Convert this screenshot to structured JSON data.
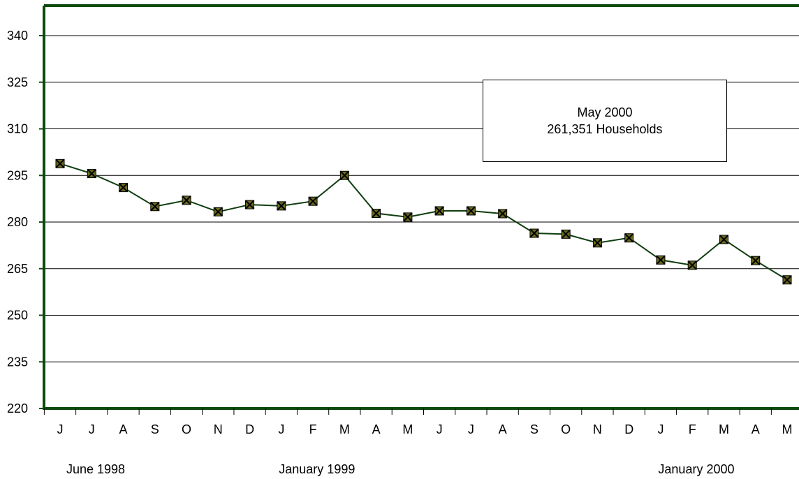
{
  "chart_data": {
    "type": "line",
    "title": "",
    "xlabel": "",
    "ylabel": "",
    "ylim": [
      220,
      340
    ],
    "yticks": [
      220,
      235,
      250,
      265,
      280,
      295,
      310,
      325,
      340
    ],
    "grid": true,
    "categories": [
      "J",
      "J",
      "A",
      "S",
      "O",
      "N",
      "D",
      "J",
      "F",
      "M",
      "A",
      "M",
      "J",
      "J",
      "A",
      "S",
      "O",
      "N",
      "D",
      "J",
      "F",
      "M",
      "A",
      "M"
    ],
    "period_labels": [
      {
        "index": 0,
        "text": "June 1998"
      },
      {
        "index": 7,
        "text": "January 1999"
      },
      {
        "index": 19,
        "text": "January 2000"
      }
    ],
    "series": [
      {
        "values": [
          298.8,
          295.6,
          291.1,
          285.0,
          287.0,
          283.3,
          285.6,
          285.2,
          286.7,
          295.0,
          282.8,
          281.6,
          283.6,
          283.6,
          282.7,
          276.4,
          276.1,
          273.3,
          274.9,
          267.8,
          266.1,
          274.4,
          267.6,
          261.4
        ]
      }
    ],
    "colors": {
      "line": "#0f3d0f",
      "marker_fill": "#6b6b1f",
      "axis": "#0f4a0f"
    },
    "annotation": {
      "line1": "May 2000",
      "line2": "261,351 Households"
    }
  }
}
